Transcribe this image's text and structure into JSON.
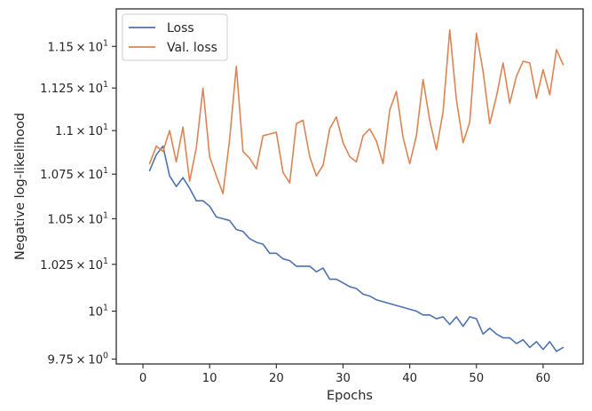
{
  "chart_data": {
    "type": "line",
    "title": "",
    "xlabel": "Epochs",
    "ylabel": "Negative log-likelihood",
    "y_scale": "log",
    "xlim": [
      -4,
      66
    ],
    "ylim": [
      9.725,
      11.73
    ],
    "grid": false,
    "legend_position": "upper-left",
    "x_ticks": [
      {
        "value": 0,
        "label": "0"
      },
      {
        "value": 10,
        "label": "10"
      },
      {
        "value": 20,
        "label": "20"
      },
      {
        "value": 30,
        "label": "30"
      },
      {
        "value": 40,
        "label": "40"
      },
      {
        "value": 50,
        "label": "50"
      },
      {
        "value": 60,
        "label": "60"
      }
    ],
    "y_ticks": [
      {
        "value": 9.75,
        "mantissa": "9.75",
        "times": "×",
        "base": "10",
        "exp": "0"
      },
      {
        "value": 10.0,
        "mantissa": "",
        "times": "",
        "base": "10",
        "exp": "1"
      },
      {
        "value": 10.25,
        "mantissa": "1.025",
        "times": "×",
        "base": "10",
        "exp": "1"
      },
      {
        "value": 10.5,
        "mantissa": "1.05",
        "times": "×",
        "base": "10",
        "exp": "1"
      },
      {
        "value": 10.75,
        "mantissa": "1.075",
        "times": "×",
        "base": "10",
        "exp": "1"
      },
      {
        "value": 11.0,
        "mantissa": "1.1",
        "times": "×",
        "base": "10",
        "exp": "1"
      },
      {
        "value": 11.25,
        "mantissa": "1.125",
        "times": "×",
        "base": "10",
        "exp": "1"
      },
      {
        "value": 11.5,
        "mantissa": "1.15",
        "times": "×",
        "base": "10",
        "exp": "1"
      }
    ],
    "x": [
      1,
      2,
      3,
      4,
      5,
      6,
      7,
      8,
      9,
      10,
      11,
      12,
      13,
      14,
      15,
      16,
      17,
      18,
      19,
      20,
      21,
      22,
      23,
      24,
      25,
      26,
      27,
      28,
      29,
      30,
      31,
      32,
      33,
      34,
      35,
      36,
      37,
      38,
      39,
      40,
      41,
      42,
      43,
      44,
      45,
      46,
      47,
      48,
      49,
      50,
      51,
      52,
      53,
      54,
      55,
      56,
      57,
      58,
      59,
      60,
      61,
      62,
      63
    ],
    "series": [
      {
        "name": "Loss",
        "color": "#4c72b0",
        "values": [
          10.77,
          10.86,
          10.91,
          10.74,
          10.68,
          10.73,
          10.67,
          10.6,
          10.6,
          10.57,
          10.51,
          10.5,
          10.49,
          10.44,
          10.43,
          10.39,
          10.37,
          10.36,
          10.31,
          10.31,
          10.28,
          10.27,
          10.24,
          10.24,
          10.24,
          10.21,
          10.23,
          10.17,
          10.17,
          10.15,
          10.13,
          10.12,
          10.09,
          10.08,
          10.06,
          10.05,
          10.04,
          10.03,
          10.02,
          10.01,
          10.0,
          9.98,
          9.98,
          9.96,
          9.97,
          9.93,
          9.97,
          9.92,
          9.97,
          9.96,
          9.88,
          9.91,
          9.88,
          9.86,
          9.86,
          9.83,
          9.85,
          9.81,
          9.84,
          9.8,
          9.84,
          9.79,
          9.81
        ]
      },
      {
        "name": "Val. loss",
        "color": "#dd8452",
        "values": [
          10.81,
          10.91,
          10.88,
          11.0,
          10.82,
          11.02,
          10.71,
          10.9,
          11.25,
          10.85,
          10.74,
          10.64,
          10.95,
          11.38,
          10.88,
          10.84,
          10.78,
          10.97,
          10.98,
          10.99,
          10.76,
          10.7,
          11.04,
          11.06,
          10.85,
          10.74,
          10.8,
          11.01,
          11.08,
          10.93,
          10.85,
          10.82,
          10.97,
          11.01,
          10.94,
          10.81,
          11.12,
          11.23,
          10.96,
          10.81,
          10.97,
          11.3,
          11.06,
          10.89,
          11.11,
          11.6,
          11.18,
          10.93,
          11.05,
          11.58,
          11.35,
          11.04,
          11.2,
          11.4,
          11.16,
          11.32,
          11.41,
          11.4,
          11.19,
          11.36,
          11.21,
          11.48,
          11.39
        ]
      }
    ]
  }
}
